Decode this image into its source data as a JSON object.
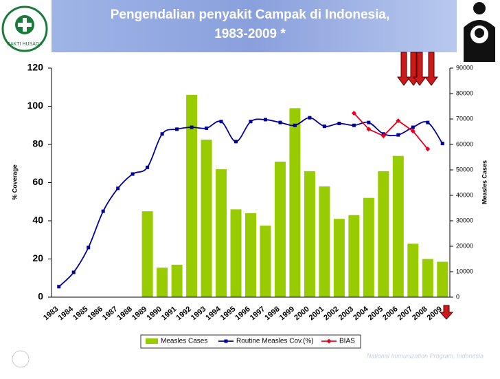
{
  "chart_data": {
    "type": "bar-line",
    "title": [
      "Pengendalian penyakit Campak di Indonesia,",
      "1983-2009 *"
    ],
    "ylabel": "% Coverage",
    "y2label": "Measles Cases",
    "logo_text": "BAKTI HUSADA",
    "footer": "National Immunization Program, Indonesia",
    "categories": [
      "1983",
      "1984",
      "1985",
      "1986",
      "1987",
      "1988",
      "1989",
      "1990",
      "1991",
      "1992",
      "1993",
      "1994",
      "1995",
      "1996",
      "1997",
      "1998",
      "1999",
      "2000",
      "2001",
      "2002",
      "2003",
      "2004",
      "2005",
      "2006",
      "2007",
      "2008",
      "2009"
    ],
    "series": [
      {
        "name": "Measles Cases",
        "color": "#99cc00",
        "kind": "bar",
        "axis": "y2",
        "values": [
          null,
          null,
          null,
          null,
          null,
          null,
          33750,
          11600,
          12750,
          79500,
          61900,
          50250,
          34500,
          33000,
          28100,
          53250,
          74250,
          49500,
          43500,
          30750,
          32250,
          39000,
          49500,
          55500,
          21000,
          15000,
          13900
        ]
      },
      {
        "name": "Routine Measles Cov.(%)",
        "color": "#000099",
        "kind": "line",
        "values": [
          5.5,
          13,
          26,
          45,
          57,
          64.5,
          68,
          85.5,
          88,
          89,
          88.5,
          92,
          81.5,
          92,
          93,
          91.5,
          90,
          94,
          89.5,
          91,
          90,
          91.5,
          85.5,
          85,
          89,
          91.5,
          80.5
        ]
      },
      {
        "name": "BIAS",
        "color": "#e8001c",
        "kind": "line",
        "values": [
          null,
          null,
          null,
          null,
          null,
          null,
          null,
          null,
          null,
          null,
          null,
          null,
          null,
          null,
          null,
          null,
          null,
          null,
          null,
          null,
          96.4,
          88,
          84.5,
          92.4,
          87,
          77.6,
          null
        ]
      }
    ],
    "ylim": [
      0,
      120
    ],
    "yticks": [
      0,
      20,
      40,
      60,
      80,
      100,
      120
    ],
    "y2lim": [
      0,
      90000
    ],
    "y2ticks": [
      0,
      10000,
      20000,
      30000,
      40000,
      50000,
      60000,
      70000,
      80000,
      90000
    ]
  }
}
